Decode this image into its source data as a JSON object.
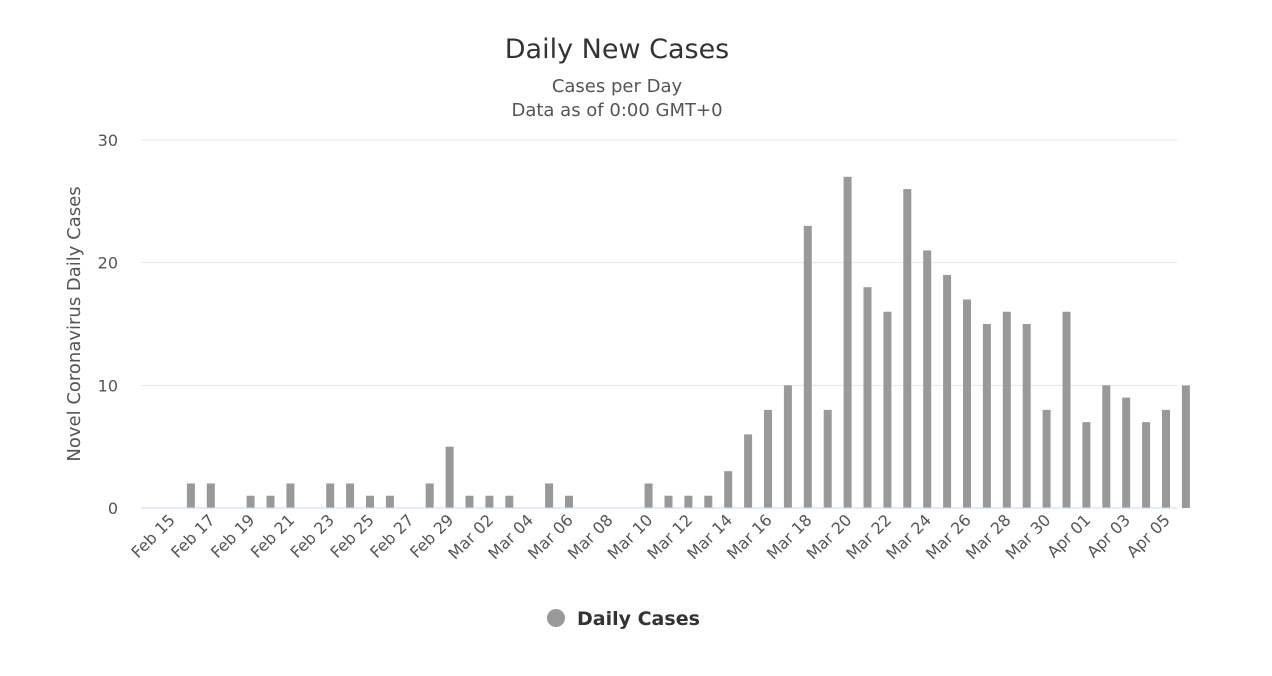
{
  "chart_data": {
    "type": "bar",
    "title": "Daily New Cases",
    "subtitle": [
      "Cases per Day",
      "Data as of 0:00 GMT+0"
    ],
    "ylabel": "Novel Coronavirus Daily Cases",
    "xlabel": "",
    "ylim": [
      0,
      30
    ],
    "yticks": [
      0,
      10,
      20,
      30
    ],
    "grid": true,
    "legend_position": "bottom-center",
    "categories": [
      "Feb 15",
      "Feb 16",
      "Feb 17",
      "Feb 18",
      "Feb 19",
      "Feb 20",
      "Feb 21",
      "Feb 22",
      "Feb 23",
      "Feb 24",
      "Feb 25",
      "Feb 26",
      "Feb 27",
      "Feb 28",
      "Feb 29",
      "Mar 01",
      "Mar 02",
      "Mar 03",
      "Mar 04",
      "Mar 05",
      "Mar 06",
      "Mar 07",
      "Mar 08",
      "Mar 09",
      "Mar 10",
      "Mar 11",
      "Mar 12",
      "Mar 13",
      "Mar 14",
      "Mar 15",
      "Mar 16",
      "Mar 17",
      "Mar 18",
      "Mar 19",
      "Mar 20",
      "Mar 21",
      "Mar 22",
      "Mar 23",
      "Mar 24",
      "Mar 25",
      "Mar 26",
      "Mar 27",
      "Mar 28",
      "Mar 29",
      "Mar 30",
      "Mar 31",
      "Apr 01",
      "Apr 02",
      "Apr 03",
      "Apr 04",
      "Apr 05",
      "Apr 06"
    ],
    "tick_labels": [
      "Feb 15",
      "Feb 17",
      "Feb 19",
      "Feb 21",
      "Feb 23",
      "Feb 25",
      "Feb 27",
      "Feb 29",
      "Mar 02",
      "Mar 04",
      "Mar 06",
      "Mar 08",
      "Mar 10",
      "Mar 12",
      "Mar 14",
      "Mar 16",
      "Mar 18",
      "Mar 20",
      "Mar 22",
      "Mar 24",
      "Mar 26",
      "Mar 28",
      "Mar 30",
      "Apr 01",
      "Apr 03",
      "Apr 05"
    ],
    "series": [
      {
        "name": "Daily Cases",
        "color": "#999999",
        "values": [
          0,
          2,
          2,
          0,
          1,
          1,
          2,
          0,
          2,
          2,
          1,
          1,
          0,
          2,
          5,
          1,
          1,
          1,
          0,
          2,
          1,
          0,
          0,
          0,
          2,
          1,
          1,
          1,
          3,
          6,
          8,
          10,
          23,
          8,
          27,
          18,
          16,
          26,
          21,
          19,
          17,
          15,
          16,
          15,
          8,
          16,
          7,
          10,
          9,
          7,
          8,
          10
        ]
      }
    ]
  }
}
